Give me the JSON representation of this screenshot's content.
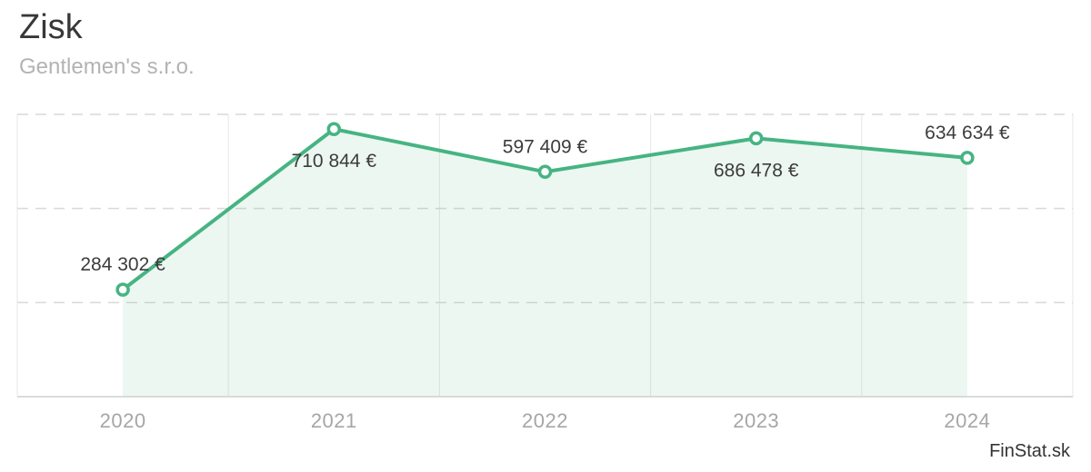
{
  "header": {
    "title": "Zisk",
    "subtitle": "Gentlemen's s.r.o."
  },
  "footer": {
    "brand": "FinStat.sk"
  },
  "colors": {
    "line": "#46b482",
    "marker_fill": "#ffffff",
    "area_fill": "#46b482",
    "area_fill_opacity": 0.1,
    "grid_dashed": "#d9d9d9",
    "grid_vertical": "#e7e7e7",
    "axis_line": "#ccd2cf",
    "data_label": "#3c3c3c",
    "year_label": "#a6a6a6"
  },
  "chart_data": {
    "type": "area",
    "title": "Zisk",
    "subtitle": "Gentlemen's s.r.o.",
    "x": [
      "2020",
      "2021",
      "2022",
      "2023",
      "2024"
    ],
    "values": [
      284302,
      710844,
      597409,
      686478,
      634634
    ],
    "labels": [
      "284 302 €",
      "710 844 €",
      "597 409 €",
      "686 478 €",
      "634 634 €"
    ],
    "label_placement": [
      "above",
      "below",
      "above",
      "below",
      "above"
    ],
    "xlabel": "",
    "ylabel": "",
    "ylim": [
      0,
      750000
    ],
    "grid_step": 250000,
    "grid": "horizontal dashed gridlines every 250000, vertical solid column separators",
    "legend": "none",
    "currency": "€"
  }
}
